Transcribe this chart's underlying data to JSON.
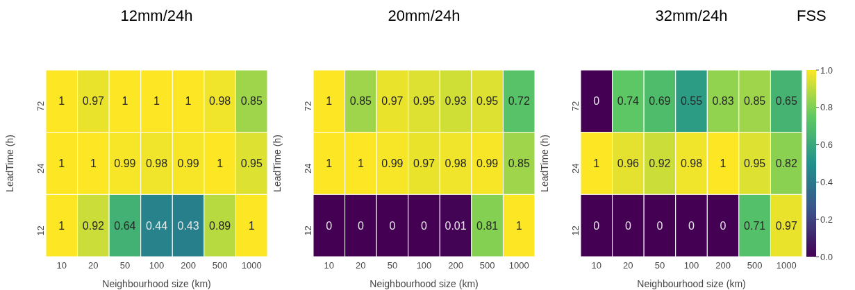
{
  "chart_data": [
    {
      "type": "heatmap",
      "title": "12mm/24h",
      "xlabel": "Neighbourhood size  (km)",
      "ylabel": "LeadTime (h)",
      "categories": [
        "10",
        "20",
        "50",
        "100",
        "200",
        "500",
        "1000"
      ],
      "y_categories": [
        "72",
        "24",
        "12"
      ],
      "data_labels": true,
      "cells": [
        [
          1,
          0.97,
          1,
          1,
          1,
          0.98,
          0.85
        ],
        [
          1,
          1,
          0.99,
          0.98,
          0.99,
          1,
          0.95
        ],
        [
          1,
          0.92,
          0.64,
          0.44,
          0.43,
          0.89,
          1
        ]
      ]
    },
    {
      "type": "heatmap",
      "title": "20mm/24h",
      "xlabel": "Neighbourhood size  (km)",
      "ylabel": "LeadTime (h)",
      "categories": [
        "10",
        "20",
        "50",
        "100",
        "200",
        "500",
        "1000"
      ],
      "y_categories": [
        "72",
        "24",
        "12"
      ],
      "data_labels": true,
      "cells": [
        [
          1,
          0.85,
          0.97,
          0.95,
          0.93,
          0.95,
          0.72
        ],
        [
          1,
          1,
          0.99,
          0.97,
          0.98,
          0.99,
          0.85
        ],
        [
          0,
          0,
          0,
          0,
          0.01,
          0.81,
          1
        ]
      ]
    },
    {
      "type": "heatmap",
      "title": "32mm/24h",
      "xlabel": "Neighbourhood size  (km)",
      "ylabel": "LeadTime (h)",
      "clabel": "FSS",
      "categories": [
        "10",
        "20",
        "50",
        "100",
        "200",
        "500",
        "1000"
      ],
      "y_categories": [
        "72",
        "24",
        "12"
      ],
      "data_labels": true,
      "cells": [
        [
          0,
          0.74,
          0.69,
          0.55,
          0.83,
          0.85,
          0.65
        ],
        [
          1,
          0.96,
          0.92,
          0.98,
          1,
          0.95,
          0.82
        ],
        [
          0,
          0,
          0,
          0,
          0,
          0.71,
          0.97
        ]
      ],
      "clim": [
        0,
        1
      ],
      "cticks": [
        {
          "value": 0,
          "label": "0.0"
        },
        {
          "value": 0.2,
          "label": "0.2"
        },
        {
          "value": 0.4,
          "label": "0.4"
        },
        {
          "value": 0.6,
          "label": "0.6"
        },
        {
          "value": 0.8,
          "label": "0.8"
        },
        {
          "value": 1,
          "label": "1.0"
        }
      ]
    }
  ]
}
